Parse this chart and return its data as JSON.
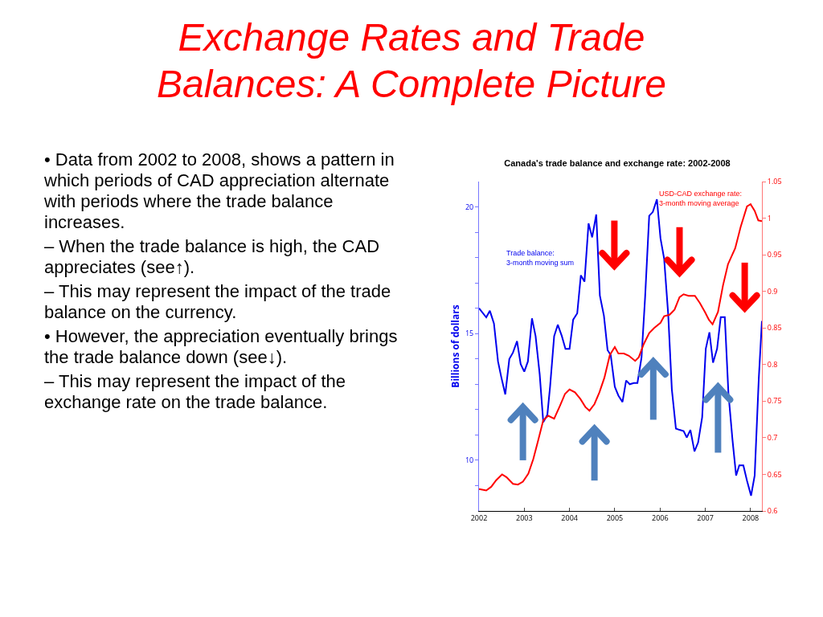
{
  "chart_data": {
    "type": "line",
    "title": "Exchange Rates and Trade Balances: A Complete Picture",
    "subtitle": "Canada's trade balance and exchange rate: 2002-2008",
    "ylabel": "Billions of dollars",
    "annotations": [
      "• Data from 2002 to 2008, shows a pattern in which periods of CAD appreciation alternate with periods where the trade balance increases.",
      "– When the trade balance is high, the CAD appreciates (see↑).",
      "– This may represent the impact of the trade balance on the currency.",
      "• However, the appreciation eventually brings the trade balance down (see↓).",
      "– This may represent the impact of the exchange rate on the trade balance."
    ],
    "legend": false,
    "grid": false,
    "xlim": [
      2002,
      2008.25
    ],
    "xticks": [
      2002,
      2003,
      2004,
      2005,
      2006,
      2007,
      2008
    ],
    "ylim": [
      8,
      21
    ],
    "yticks": [
      {
        "value": 9,
        "label": null
      },
      10,
      {
        "value": 11,
        "label": null
      },
      {
        "value": 12,
        "label": null
      },
      {
        "value": 13,
        "label": null
      },
      {
        "value": 14,
        "label": null
      },
      15,
      {
        "value": 16,
        "label": null
      },
      {
        "value": 17,
        "label": null
      },
      {
        "value": 18,
        "label": null
      },
      {
        "value": 19,
        "label": null
      },
      20
    ],
    "y2lim": [
      0.6,
      1.05
    ],
    "y2ticks": [
      0.6,
      0.65,
      0.7,
      0.75,
      0.8,
      0.85,
      0.9,
      0.95,
      1,
      1.05
    ],
    "series": [
      {
        "name": "Trade balance:\n3-month moving sum",
        "color": "#0000ee",
        "x": [
          2002.0,
          2002.16,
          2002.24,
          2002.33,
          2002.42,
          2002.49,
          2002.58,
          2002.67,
          2002.75,
          2002.84,
          2002.92,
          2003.0,
          2003.08,
          2003.17,
          2003.25,
          2003.34,
          2003.42,
          2003.51,
          2003.57,
          2003.66,
          2003.74,
          2003.83,
          2003.91,
          2004.0,
          2004.08,
          2004.17,
          2004.25,
          2004.33,
          2004.42,
          2004.5,
          2004.59,
          2004.67,
          2004.76,
          2004.84,
          2004.91,
          2005.0,
          2005.08,
          2005.17,
          2005.25,
          2005.33,
          2005.42,
          2005.5,
          2005.59,
          2005.67,
          2005.76,
          2005.84,
          2005.93,
          2006.01,
          2006.09,
          2006.18,
          2006.26,
          2006.35,
          2006.43,
          2006.52,
          2006.59,
          2006.67,
          2006.76,
          2006.84,
          2006.93,
          2007.01,
          2007.09,
          2007.17,
          2007.26,
          2007.34,
          2007.43,
          2007.51,
          2007.6,
          2007.68,
          2007.75,
          2007.84,
          2007.92,
          2008.01,
          2008.09,
          2008.18,
          2008.25
        ],
        "values": [
          16.0,
          15.64,
          15.9,
          15.4,
          13.9,
          13.3,
          12.6,
          14.0,
          14.25,
          14.7,
          13.8,
          13.5,
          13.9,
          15.6,
          14.9,
          13.4,
          11.5,
          11.8,
          12.9,
          14.9,
          15.35,
          14.9,
          14.4,
          14.4,
          15.55,
          15.8,
          17.3,
          17.05,
          19.35,
          18.8,
          19.7,
          16.5,
          15.7,
          14.35,
          14.15,
          12.9,
          12.55,
          12.3,
          13.15,
          13.0,
          13.05,
          13.05,
          14.05,
          16.45,
          19.65,
          19.8,
          20.3,
          18.75,
          17.95,
          15.75,
          12.8,
          11.25,
          11.2,
          11.15,
          10.9,
          11.2,
          10.35,
          10.7,
          11.7,
          14.4,
          15.05,
          13.85,
          14.4,
          15.65,
          15.65,
          12.65,
          10.8,
          9.4,
          9.8,
          9.8,
          9.2,
          8.6,
          9.4,
          13.2,
          15.5
        ]
      },
      {
        "name": "USD-CAD exchange rate:\n3-month moving average",
        "color": "#ff0000",
        "axis": "y2",
        "x": [
          2002.0,
          2002.16,
          2002.27,
          2002.38,
          2002.51,
          2002.61,
          2002.75,
          2002.86,
          2002.97,
          2003.09,
          2003.2,
          2003.31,
          2003.42,
          2003.53,
          2003.66,
          2003.79,
          2003.9,
          2004.0,
          2004.12,
          2004.24,
          2004.35,
          2004.44,
          2004.55,
          2004.66,
          2004.77,
          2004.89,
          2005.0,
          2005.08,
          2005.2,
          2005.31,
          2005.45,
          2005.53,
          2005.64,
          2005.76,
          2005.87,
          2006.01,
          2006.09,
          2006.21,
          2006.32,
          2006.43,
          2006.52,
          2006.63,
          2006.77,
          2006.88,
          2006.99,
          2007.08,
          2007.16,
          2007.28,
          2007.39,
          2007.5,
          2007.66,
          2007.78,
          2007.92,
          2008.0,
          2008.09,
          2008.17,
          2008.25
        ],
        "values": [
          0.63,
          0.628,
          0.633,
          0.642,
          0.65,
          0.646,
          0.637,
          0.636,
          0.64,
          0.651,
          0.671,
          0.697,
          0.724,
          0.73,
          0.726,
          0.744,
          0.76,
          0.766,
          0.762,
          0.753,
          0.742,
          0.737,
          0.746,
          0.762,
          0.782,
          0.813,
          0.824,
          0.815,
          0.815,
          0.812,
          0.805,
          0.81,
          0.828,
          0.843,
          0.85,
          0.857,
          0.866,
          0.868,
          0.875,
          0.892,
          0.896,
          0.894,
          0.894,
          0.884,
          0.872,
          0.861,
          0.855,
          0.872,
          0.908,
          0.937,
          0.959,
          0.988,
          1.016,
          1.019,
          1.01,
          0.997,
          0.996
        ]
      }
    ]
  }
}
